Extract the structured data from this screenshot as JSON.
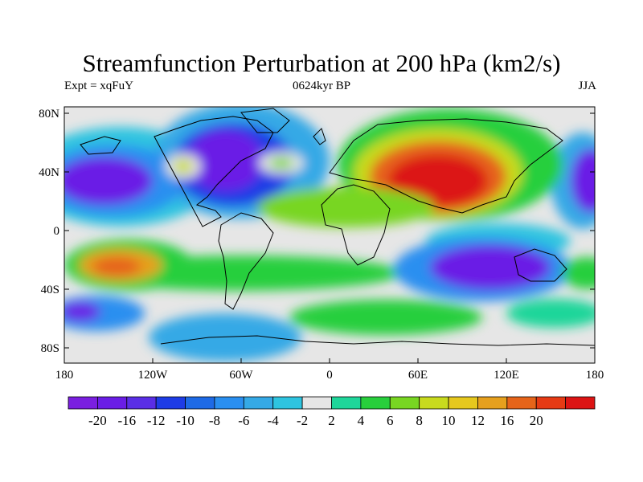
{
  "title": "Streamfunction Perturbation at 200 hPa (km2/s)",
  "subtitle_left": "Expt = xqFuY",
  "subtitle_center": "0624kyr BP",
  "subtitle_right": "JJA",
  "lat_labels": [
    "80N",
    "40N",
    "0",
    "40S",
    "80S"
  ],
  "lon_labels": [
    "180",
    "120W",
    "60W",
    "0",
    "60E",
    "120E",
    "180"
  ],
  "colorbar": {
    "colors": [
      "#7a1fe0",
      "#6a1de6",
      "#5a2ee6",
      "#1e3ce6",
      "#1e6ae6",
      "#2a8ff0",
      "#35a9e6",
      "#2ec4e0",
      "#e6e6e6",
      "#1fd69a",
      "#28cf3c",
      "#78d622",
      "#c8da1e",
      "#e6c81e",
      "#e6a01e",
      "#e6641a",
      "#e63a14",
      "#dc1414"
    ],
    "labels": [
      "-20",
      "-16",
      "-12",
      "-10",
      "-8",
      "-6",
      "-4",
      "-2",
      "2",
      "4",
      "6",
      "8",
      "10",
      "12",
      "16",
      "20"
    ]
  }
}
